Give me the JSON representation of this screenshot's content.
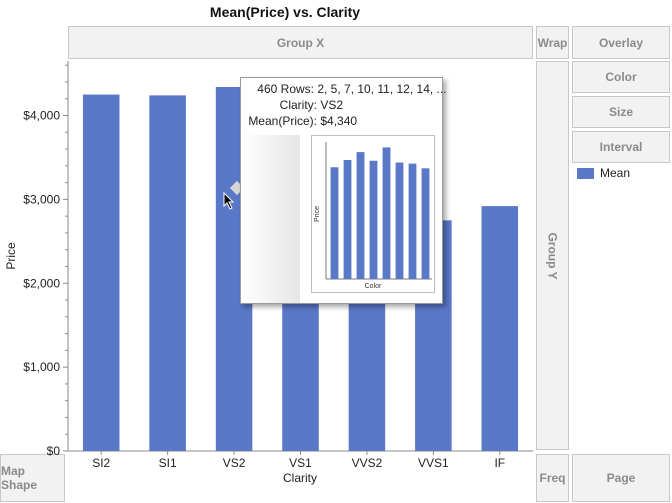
{
  "chart_data": {
    "type": "bar",
    "title": "Mean(Price) vs. Clarity",
    "xlabel": "Clarity",
    "ylabel": "Price",
    "categories": [
      "SI2",
      "SI1",
      "VS2",
      "VS1",
      "VVS2",
      "VVS1",
      "IF"
    ],
    "series": [
      {
        "name": "Mean",
        "values": [
          4250,
          4240,
          4340,
          3850,
          3300,
          2750,
          2920
        ]
      }
    ],
    "ylim": [
      0,
      4650
    ],
    "yticks": [
      0,
      1000,
      2000,
      3000,
      4000
    ],
    "ytick_labels": [
      "$0",
      "$1,000",
      "$2,000",
      "$3,000",
      "$4,000"
    ],
    "grid": false,
    "legend": "right"
  },
  "colors": {
    "bar": "#5a78c8",
    "zone_text": "#8a8a8a"
  },
  "zones": {
    "group_x": "Group X",
    "group_y": "Group Y",
    "wrap": "Wrap",
    "overlay": "Overlay",
    "color": "Color",
    "size": "Size",
    "interval": "Interval",
    "map_shape": "Map Shape",
    "freq": "Freq",
    "page": "Page"
  },
  "legend": {
    "label": "Mean"
  },
  "tooltip": {
    "rows_label": "460 Rows:",
    "rows_value": "2, 5, 7, 10, 11, 12, 14, ...",
    "clarity_label": "Clarity:",
    "clarity_value": "VS2",
    "mean_label": "Mean(Price):",
    "mean_value": "$4,340",
    "thumb_ylabel": "Price",
    "thumb_xlabel": "Color",
    "thumb_values": [
      3100,
      3300,
      3520,
      3280,
      3650,
      3230,
      3200,
      3070
    ]
  },
  "cursor_icon": "pointer-cursor-icon"
}
